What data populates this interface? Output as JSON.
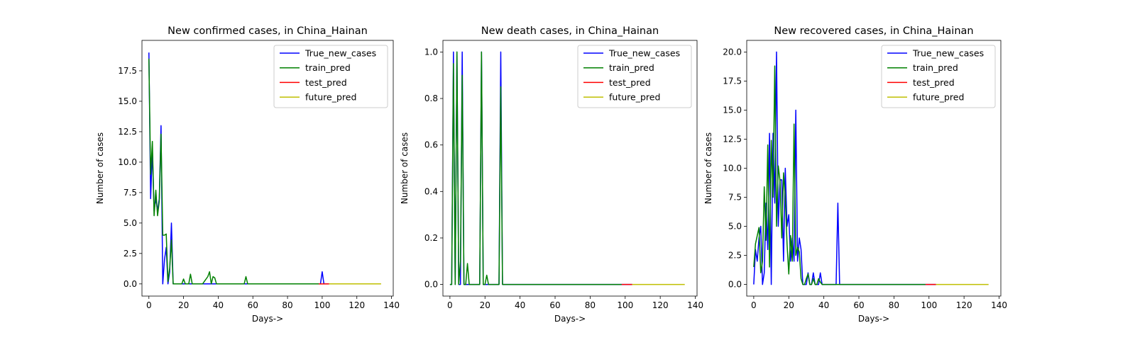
{
  "colors": {
    "true": "#0000ff",
    "train": "#008000",
    "test": "#ff0000",
    "future": "#bfbf00"
  },
  "chart_data": [
    {
      "type": "line",
      "title": "New confirmed cases, in China_Hainan",
      "xlabel": "Days->",
      "ylabel": "Number of cases",
      "xlim": [
        -4,
        141
      ],
      "ylim": [
        -1,
        20
      ],
      "xticks": [
        0,
        20,
        40,
        60,
        80,
        100,
        120,
        140
      ],
      "xtick_labels": [
        "0",
        "20",
        "40",
        "60",
        "80",
        "100",
        "120",
        "140"
      ],
      "yticks": [
        0,
        2.5,
        5,
        7.5,
        10,
        12.5,
        15,
        17.5
      ],
      "ytick_labels": [
        "0.0",
        "2.5",
        "5.0",
        "7.5",
        "10.0",
        "12.5",
        "15.0",
        "17.5"
      ],
      "legend": "top-right",
      "series": [
        {
          "name": "True_new_cases",
          "color": "#0000ff",
          "x": [
            0,
            1,
            2,
            3,
            4,
            5,
            6,
            7,
            8,
            9,
            10,
            11,
            12,
            13,
            14,
            15,
            99,
            100,
            101,
            104
          ],
          "y": [
            19,
            7,
            11,
            6,
            7,
            6,
            7,
            13,
            0,
            2,
            3,
            0,
            1,
            5,
            0,
            0,
            0,
            1,
            0,
            0
          ]
        },
        {
          "name": "train_pred",
          "color": "#008000",
          "x": [
            0,
            1,
            2,
            3,
            4,
            5,
            6,
            7,
            8,
            9,
            10,
            11,
            12,
            13,
            14,
            15,
            19,
            20,
            21,
            23,
            24,
            25,
            31,
            32,
            34,
            35,
            36,
            37,
            38,
            39,
            55,
            56,
            57,
            98
          ],
          "y": [
            18.5,
            9,
            11.7,
            5.6,
            7.7,
            5.6,
            6.8,
            12.3,
            4.0,
            4.0,
            4.1,
            0.2,
            1.3,
            3.6,
            0,
            0,
            0,
            0.4,
            0,
            0,
            0.8,
            0,
            0,
            0.2,
            0.6,
            1.0,
            0,
            0.6,
            0.5,
            0,
            0,
            0.6,
            0,
            0
          ]
        },
        {
          "name": "test_pred",
          "color": "#ff0000",
          "x": [
            98,
            104
          ],
          "y": [
            0,
            0
          ]
        },
        {
          "name": "future_pred",
          "color": "#bfbf00",
          "x": [
            104,
            134
          ],
          "y": [
            0,
            0
          ]
        }
      ]
    },
    {
      "type": "line",
      "title": "New death cases, in China_Hainan",
      "xlabel": "Days->",
      "ylabel": "Number of cases",
      "xlim": [
        -4,
        141
      ],
      "ylim": [
        -0.05,
        1.05
      ],
      "xticks": [
        0,
        20,
        40,
        60,
        80,
        100,
        120,
        140
      ],
      "xtick_labels": [
        "0",
        "20",
        "40",
        "60",
        "80",
        "100",
        "120",
        "140"
      ],
      "yticks": [
        0,
        0.2,
        0.4,
        0.6,
        0.8,
        1.0
      ],
      "ytick_labels": [
        "0.0",
        "0.2",
        "0.4",
        "0.6",
        "0.8",
        "1.0"
      ],
      "legend": "top-right",
      "series": [
        {
          "name": "True_new_cases",
          "color": "#0000ff",
          "x": [
            0,
            1,
            2,
            3,
            4,
            5,
            6,
            7,
            8,
            17,
            18,
            19,
            28,
            29,
            30,
            104
          ],
          "y": [
            0,
            0,
            1,
            0,
            1,
            0,
            0,
            1,
            0,
            0,
            1,
            0,
            0,
            1,
            0,
            0
          ]
        },
        {
          "name": "train_pred",
          "color": "#008000",
          "x": [
            0,
            1,
            2,
            3,
            4,
            5,
            6,
            7,
            8,
            9,
            10,
            11,
            12,
            17,
            18,
            19,
            20,
            21,
            22,
            28,
            29,
            30,
            98
          ],
          "y": [
            0,
            0,
            0.95,
            0,
            1.0,
            0,
            0.1,
            0.9,
            0,
            0,
            0.09,
            0,
            0,
            0,
            1.0,
            0,
            0,
            0.04,
            0,
            0,
            0.85,
            0,
            0
          ]
        },
        {
          "name": "test_pred",
          "color": "#ff0000",
          "x": [
            98,
            104
          ],
          "y": [
            0,
            0
          ]
        },
        {
          "name": "future_pred",
          "color": "#bfbf00",
          "x": [
            104,
            134
          ],
          "y": [
            0,
            0
          ]
        }
      ]
    },
    {
      "type": "line",
      "title": "New recovered cases, in China_Hainan",
      "xlabel": "Days->",
      "ylabel": "Number of cases",
      "xlim": [
        -4,
        141
      ],
      "ylim": [
        -1,
        21
      ],
      "xticks": [
        0,
        20,
        40,
        60,
        80,
        100,
        120,
        140
      ],
      "xtick_labels": [
        "0",
        "20",
        "40",
        "60",
        "80",
        "100",
        "120",
        "140"
      ],
      "yticks": [
        0,
        2.5,
        5,
        7.5,
        10,
        12.5,
        15,
        17.5,
        20
      ],
      "ytick_labels": [
        "0.0",
        "2.5",
        "5.0",
        "7.5",
        "10.0",
        "12.5",
        "15.0",
        "17.5",
        "20.0"
      ],
      "legend": "top-right",
      "series": [
        {
          "name": "True_new_cases",
          "color": "#0000ff",
          "x": [
            0,
            1,
            2,
            3,
            4,
            5,
            6,
            7,
            8,
            9,
            10,
            11,
            12,
            13,
            14,
            15,
            16,
            17,
            18,
            19,
            20,
            21,
            22,
            23,
            24,
            25,
            26,
            27,
            28,
            29,
            30,
            31,
            32,
            33,
            34,
            35,
            36,
            37,
            38,
            39,
            40,
            41,
            47,
            48,
            49,
            104
          ],
          "y": [
            0,
            3,
            2,
            4,
            5,
            0,
            1,
            7,
            3,
            13,
            0,
            13,
            7,
            20,
            5,
            9,
            9,
            2,
            10,
            5,
            6,
            2,
            4,
            2,
            15,
            2,
            4,
            3,
            0,
            0,
            0,
            1,
            0,
            0,
            1,
            0,
            0,
            0,
            1,
            0,
            0,
            0,
            0,
            7,
            0,
            0
          ]
        },
        {
          "name": "train_pred",
          "color": "#008000",
          "x": [
            0,
            1,
            2,
            3,
            4,
            5,
            6,
            7,
            8,
            9,
            10,
            11,
            12,
            13,
            14,
            15,
            16,
            17,
            18,
            19,
            20,
            21,
            22,
            23,
            24,
            25,
            26,
            27,
            28,
            29,
            30,
            31,
            32,
            33,
            34,
            35,
            36,
            37,
            38,
            39,
            98
          ],
          "y": [
            1.5,
            3.5,
            4.2,
            4.9,
            1.0,
            2.0,
            8.4,
            3.8,
            12.0,
            1.5,
            12.4,
            7.5,
            18.8,
            5.0,
            10.2,
            8.9,
            4.0,
            9.6,
            7.5,
            3.5,
            0.9,
            4.2,
            2.0,
            13.8,
            2.5,
            3.2,
            2.8,
            0.5,
            0,
            0,
            0.5,
            0.9,
            0,
            0,
            0.5,
            0,
            0,
            0.5,
            0.2,
            0,
            0
          ]
        },
        {
          "name": "test_pred",
          "color": "#ff0000",
          "x": [
            98,
            104
          ],
          "y": [
            0,
            0
          ]
        },
        {
          "name": "future_pred",
          "color": "#bfbf00",
          "x": [
            104,
            134
          ],
          "y": [
            0,
            0
          ]
        }
      ]
    }
  ]
}
